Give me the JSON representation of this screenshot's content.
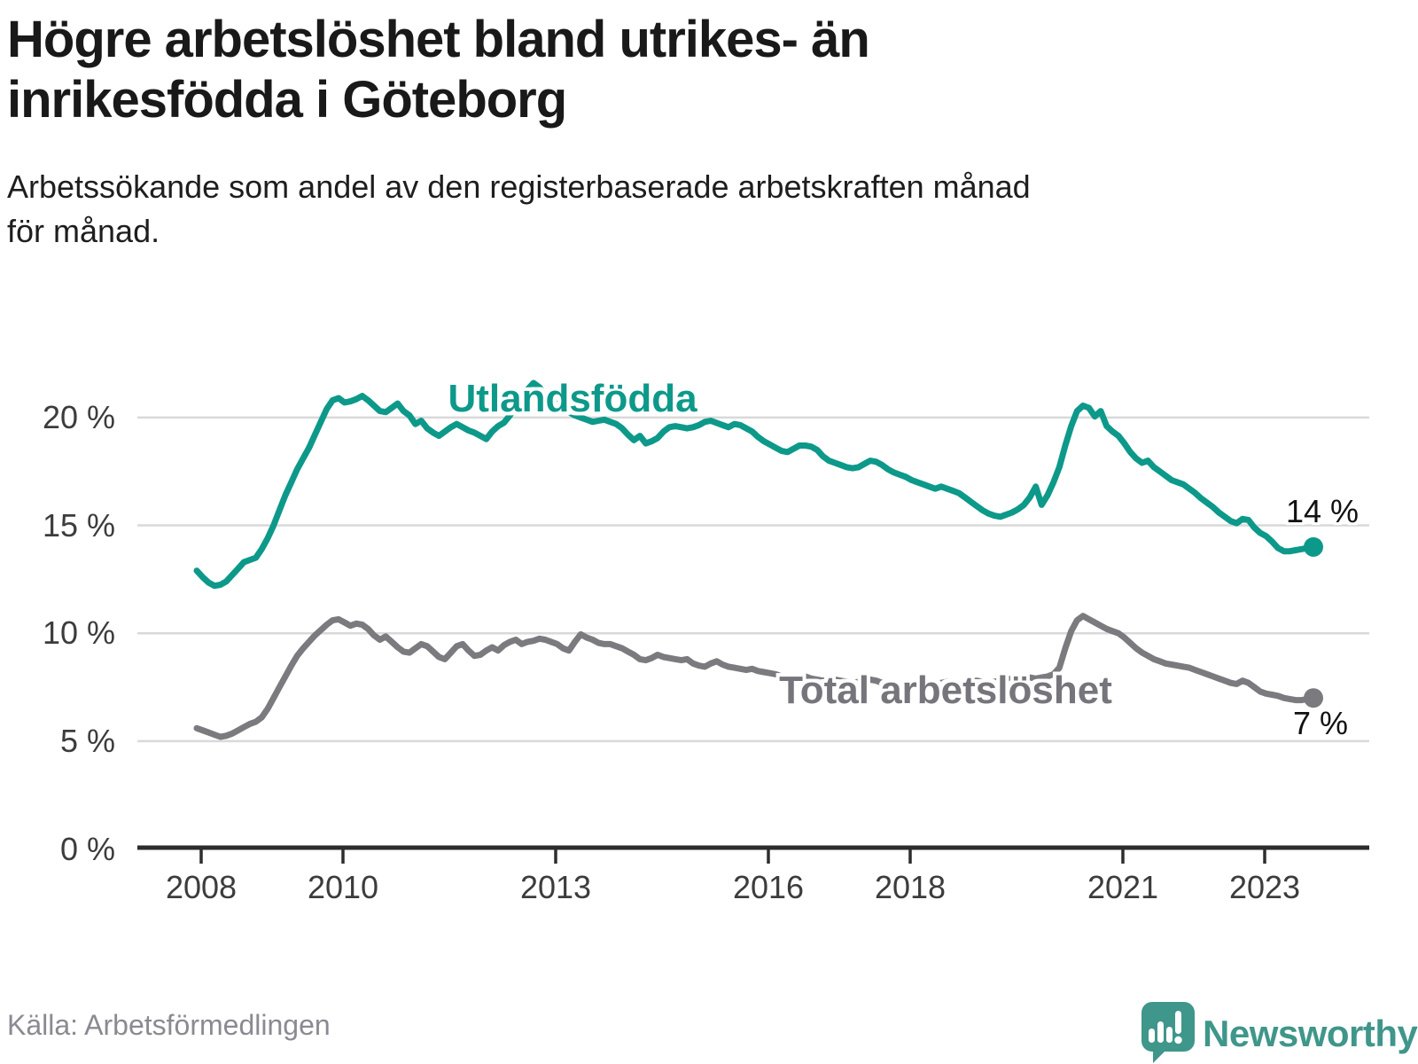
{
  "header": {
    "title_lines": [
      "Högre arbetslöshet bland utrikes- än",
      "inrikesfödda i Göteborg"
    ],
    "subtitle_lines": [
      "Arbetssökande som andel av den registerbaserade arbetskraften månad",
      "för månad."
    ]
  },
  "source": {
    "label": "Källa: Arbetsförmedlingen"
  },
  "logo": {
    "text": "Newsworthy",
    "bubble_color": "#3f968a",
    "icon": "bar-chart-exclamation-speech-bubble"
  },
  "chart_data": {
    "type": "line",
    "title": "Högre arbetslöshet bland utrikes- än inrikesfödda i Göteborg",
    "subtitle": "Arbetssökande som andel av den registerbaserade arbetskraften månad för månad.",
    "unit": "%",
    "x_start": "2008-01",
    "x_end": "2023-10",
    "x_step": "month",
    "ylim": [
      0,
      22
    ],
    "grid": "horizontal",
    "legend_position": "inline-labels",
    "y_ticks": [
      {
        "value": 0,
        "label": "0 %"
      },
      {
        "value": 5,
        "label": "5 %"
      },
      {
        "value": 10,
        "label": "10 %"
      },
      {
        "value": 15,
        "label": "15 %"
      },
      {
        "value": 20,
        "label": "20 %"
      }
    ],
    "x_ticks": [
      {
        "year": 2008,
        "label": "2008"
      },
      {
        "year": 2010,
        "label": "2010"
      },
      {
        "year": 2013,
        "label": "2013"
      },
      {
        "year": 2016,
        "label": "2016"
      },
      {
        "year": 2018,
        "label": "2018"
      },
      {
        "year": 2021,
        "label": "2021"
      },
      {
        "year": 2023,
        "label": "2023"
      }
    ],
    "series": [
      {
        "name": "Utlandsfödda",
        "color": "#0d998a",
        "end_label": "14 %",
        "end_value": 14,
        "values": [
          12.9,
          12.6,
          12.35,
          12.2,
          12.25,
          12.4,
          12.7,
          13.0,
          13.3,
          13.4,
          13.5,
          13.9,
          14.4,
          15.0,
          15.7,
          16.4,
          17.0,
          17.6,
          18.1,
          18.6,
          19.2,
          19.8,
          20.4,
          20.8,
          20.9,
          20.7,
          20.75,
          20.85,
          21.0,
          20.8,
          20.55,
          20.3,
          20.25,
          20.45,
          20.65,
          20.3,
          20.1,
          19.7,
          19.85,
          19.5,
          19.3,
          19.15,
          19.35,
          19.55,
          19.7,
          19.55,
          19.4,
          19.3,
          19.15,
          19.0,
          19.35,
          19.6,
          19.76,
          20.1,
          20.5,
          20.9,
          21.3,
          21.6,
          21.4,
          21.0,
          20.8,
          20.6,
          20.4,
          20.25,
          20.1,
          20.0,
          19.9,
          19.8,
          19.85,
          19.9,
          19.8,
          19.7,
          19.5,
          19.2,
          18.95,
          19.15,
          18.8,
          18.9,
          19.05,
          19.35,
          19.55,
          19.6,
          19.55,
          19.5,
          19.55,
          19.65,
          19.8,
          19.85,
          19.75,
          19.65,
          19.55,
          19.7,
          19.65,
          19.5,
          19.35,
          19.1,
          18.9,
          18.75,
          18.6,
          18.45,
          18.4,
          18.55,
          18.7,
          18.7,
          18.65,
          18.5,
          18.2,
          18.0,
          17.9,
          17.8,
          17.7,
          17.65,
          17.7,
          17.85,
          18.0,
          17.95,
          17.8,
          17.6,
          17.45,
          17.35,
          17.25,
          17.1,
          17.0,
          16.9,
          16.8,
          16.7,
          16.8,
          16.7,
          16.6,
          16.5,
          16.3,
          16.1,
          15.9,
          15.7,
          15.55,
          15.45,
          15.4,
          15.5,
          15.6,
          15.75,
          15.95,
          16.3,
          16.8,
          15.95,
          16.4,
          17.0,
          17.7,
          18.7,
          19.6,
          20.3,
          20.55,
          20.45,
          20.05,
          20.3,
          19.6,
          19.35,
          19.15,
          18.8,
          18.4,
          18.1,
          17.9,
          18.0,
          17.7,
          17.5,
          17.3,
          17.1,
          17.0,
          16.9,
          16.7,
          16.5,
          16.25,
          16.05,
          15.85,
          15.6,
          15.4,
          15.2,
          15.1,
          15.3,
          15.25,
          14.9,
          14.65,
          14.5,
          14.25,
          13.95,
          13.8,
          13.8,
          13.85,
          13.9,
          13.95,
          14.0
        ]
      },
      {
        "name": "Total arbetslöshet",
        "color": "#7a7a7f",
        "end_label": "7 %",
        "end_value": 7,
        "values": [
          5.6,
          5.5,
          5.4,
          5.3,
          5.2,
          5.25,
          5.35,
          5.5,
          5.65,
          5.8,
          5.9,
          6.1,
          6.5,
          7.0,
          7.5,
          8.0,
          8.5,
          8.95,
          9.3,
          9.6,
          9.9,
          10.15,
          10.4,
          10.6,
          10.65,
          10.5,
          10.35,
          10.45,
          10.4,
          10.2,
          9.9,
          9.7,
          9.85,
          9.6,
          9.35,
          9.15,
          9.1,
          9.3,
          9.5,
          9.4,
          9.15,
          8.9,
          8.8,
          9.1,
          9.4,
          9.5,
          9.2,
          8.95,
          9.0,
          9.2,
          9.35,
          9.2,
          9.45,
          9.6,
          9.7,
          9.5,
          9.6,
          9.65,
          9.75,
          9.7,
          9.6,
          9.5,
          9.3,
          9.2,
          9.6,
          9.95,
          9.8,
          9.7,
          9.55,
          9.5,
          9.5,
          9.4,
          9.3,
          9.15,
          9.0,
          8.8,
          8.75,
          8.85,
          9.0,
          8.9,
          8.85,
          8.8,
          8.75,
          8.8,
          8.6,
          8.5,
          8.45,
          8.6,
          8.7,
          8.55,
          8.45,
          8.4,
          8.35,
          8.3,
          8.35,
          8.25,
          8.2,
          8.15,
          8.1,
          8.0,
          7.95,
          7.9,
          7.95,
          8.0,
          7.9,
          7.85,
          7.8,
          7.85,
          7.85,
          7.8,
          7.75,
          7.7,
          7.75,
          7.8,
          7.85,
          7.8,
          7.7,
          7.65,
          7.6,
          7.65,
          7.7,
          7.65,
          7.6,
          7.55,
          7.6,
          7.65,
          7.7,
          7.75,
          7.7,
          7.65,
          7.7,
          7.75,
          7.8,
          7.75,
          7.7,
          7.75,
          7.8,
          7.85,
          7.9,
          7.95,
          8.0,
          7.95,
          7.9,
          7.95,
          8.0,
          8.1,
          8.4,
          9.3,
          10.1,
          10.6,
          10.8,
          10.65,
          10.5,
          10.35,
          10.2,
          10.1,
          10.0,
          9.8,
          9.55,
          9.3,
          9.1,
          8.95,
          8.8,
          8.7,
          8.6,
          8.55,
          8.5,
          8.45,
          8.4,
          8.3,
          8.2,
          8.1,
          8.0,
          7.9,
          7.8,
          7.7,
          7.65,
          7.8,
          7.7,
          7.5,
          7.3,
          7.2,
          7.15,
          7.1,
          7.0,
          6.95,
          6.9,
          6.9,
          6.95,
          7.0
        ]
      }
    ],
    "colors": {
      "grid": "#d9d9d9",
      "axis": "#2d2d2d",
      "tick_text": "#3c3c3c",
      "title_text": "#191919",
      "source_text": "#8a8a92"
    }
  }
}
